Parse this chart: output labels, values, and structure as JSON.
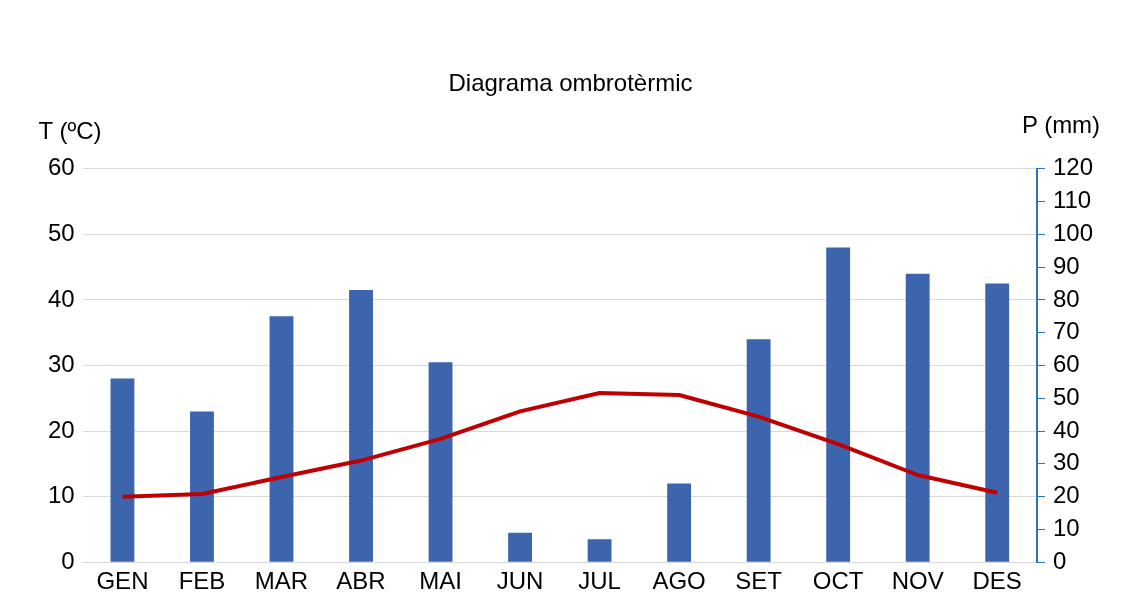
{
  "chart_data": {
    "type": "bar",
    "title": "Diagrama ombrotèrmic",
    "ylabel": "T (ºC)",
    "y2label": "P (mm)",
    "categories": [
      "GEN",
      "FEB",
      "MAR",
      "ABR",
      "MAI",
      "JUN",
      "JUL",
      "AGO",
      "SET",
      "OCT",
      "NOV",
      "DES"
    ],
    "series": [
      {
        "axis": "y2",
        "color": "#3c65ae",
        "values": [
          56,
          46,
          75,
          83,
          61,
          9,
          7,
          24,
          68,
          96,
          88,
          85
        ]
      },
      {
        "type": "line",
        "axis": "y",
        "color": "#c00000",
        "values": [
          10.0,
          10.4,
          13.0,
          15.5,
          18.8,
          23.0,
          25.8,
          25.5,
          22.2,
          18.0,
          13.3,
          10.6
        ]
      }
    ],
    "ylim": [
      0,
      60
    ],
    "yticks": [
      0,
      10,
      20,
      30,
      40,
      50,
      60
    ],
    "y2lim": [
      0,
      120
    ],
    "y2ticks": [
      0,
      10,
      20,
      30,
      40,
      50,
      60,
      70,
      80,
      90,
      100,
      110,
      120
    ],
    "grid": "y",
    "legend": false,
    "marker": "none",
    "line_style": "solid"
  }
}
